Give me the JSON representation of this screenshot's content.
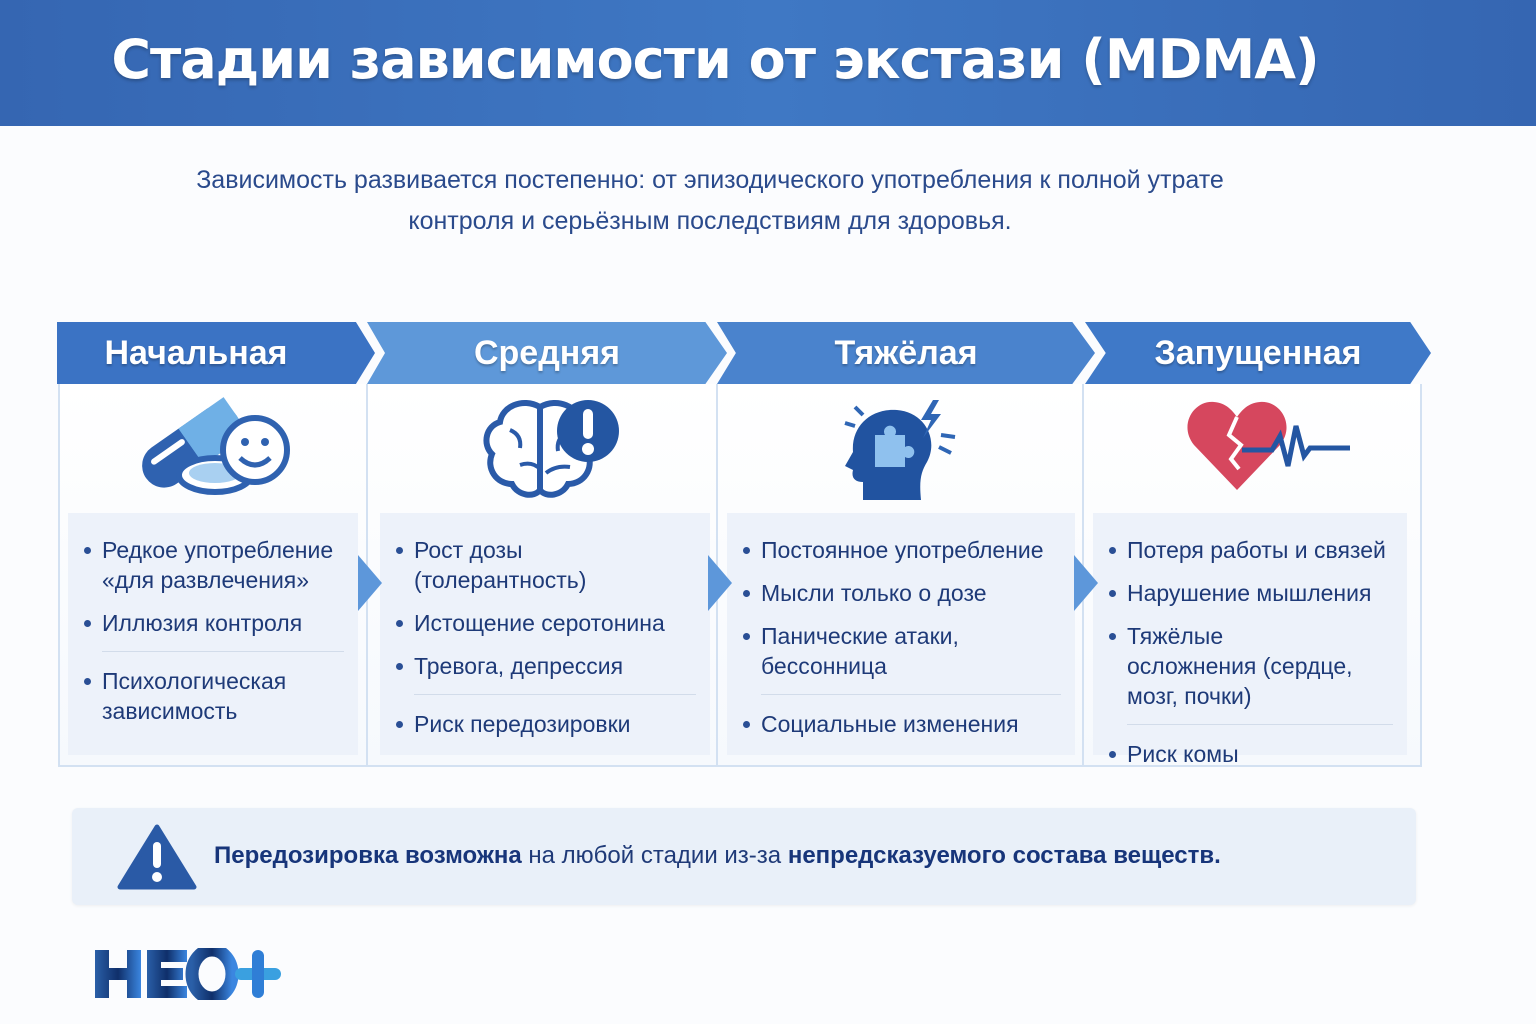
{
  "title": "Стадии зависимости от экстази (MDMA)",
  "subtitle": {
    "line1": "Зависимость развивается постепенно: от эпизодического употребления к полной утрате",
    "line2": "контроля и серьёзным последствиям для здоровья."
  },
  "stages": [
    {
      "name": "Начальная",
      "icon": "pills-smiley-icon",
      "items": [
        "Редкое употребление «для развлечения»",
        "Иллюзия контроля",
        "Психологическая зависимость"
      ]
    },
    {
      "name": "Средняя",
      "icon": "brain-alert-icon",
      "items": [
        "Рост дозы (толерантность)",
        "Истощение серотонина",
        "Тревога, депрессия",
        "Риск передозировки"
      ]
    },
    {
      "name": "Тяжёлая",
      "icon": "head-puzzle-icon",
      "items": [
        "Постоянное употребление",
        "Мысли только о дозе",
        "Панические атаки, бессонница",
        "Социальные изменения"
      ]
    },
    {
      "name": "Запущенная",
      "icon": "broken-heart-pulse-icon",
      "items": [
        "Потеря работы и связей",
        "Нарушение мышления",
        "Тяжёлые осложнения (сердце, мозг, почки)",
        "Риск комы"
      ]
    }
  ],
  "warning": {
    "icon": "warning-triangle-icon",
    "bold1": "Передозировка возможна",
    "regular": " на любой стадии из-за ",
    "bold2": "непредсказуемого состава веществ."
  },
  "logo": {
    "text": "НЕО+"
  },
  "colors": {
    "header": "#3a6fb8",
    "text": "#1e3a78",
    "heart": "#d6475e"
  }
}
